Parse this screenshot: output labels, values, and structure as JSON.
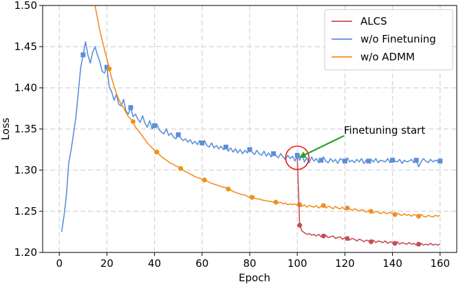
{
  "chart_data": {
    "type": "line",
    "xlabel": "Epoch",
    "ylabel": "Loss",
    "xlim": [
      -7,
      167
    ],
    "ylim": [
      1.2,
      1.5
    ],
    "xticks": [
      0,
      20,
      40,
      60,
      80,
      100,
      120,
      140,
      160
    ],
    "yticks": [
      1.2,
      1.25,
      1.3,
      1.35,
      1.4,
      1.45,
      1.5
    ],
    "xtick_labels": [
      "0",
      "20",
      "40",
      "60",
      "80",
      "100",
      "120",
      "140",
      "160"
    ],
    "ytick_labels": [
      "1.20",
      "1.25",
      "1.30",
      "1.35",
      "1.40",
      "1.45",
      "1.50"
    ],
    "grid": true,
    "legend_position": "top-right",
    "series": [
      {
        "name": "ALCS",
        "color": "#c44e52",
        "marker": "circle",
        "x": [
          100,
          101,
          102,
          103,
          104,
          105,
          106,
          107,
          108,
          109,
          110,
          111,
          112,
          113,
          114,
          115,
          116,
          117,
          118,
          119,
          120,
          121,
          122,
          123,
          124,
          125,
          126,
          127,
          128,
          129,
          130,
          131,
          132,
          133,
          134,
          135,
          136,
          137,
          138,
          139,
          140,
          141,
          142,
          143,
          144,
          145,
          146,
          147,
          148,
          149,
          150,
          151,
          152,
          153,
          154,
          155,
          156,
          157,
          158,
          159,
          160
        ],
        "y": [
          1.315,
          1.233,
          1.226,
          1.224,
          1.222,
          1.223,
          1.221,
          1.222,
          1.22,
          1.222,
          1.219,
          1.22,
          1.221,
          1.218,
          1.219,
          1.22,
          1.217,
          1.218,
          1.219,
          1.216,
          1.218,
          1.217,
          1.215,
          1.217,
          1.216,
          1.214,
          1.216,
          1.215,
          1.213,
          1.215,
          1.214,
          1.213,
          1.215,
          1.212,
          1.214,
          1.213,
          1.212,
          1.214,
          1.211,
          1.213,
          1.212,
          1.211,
          1.213,
          1.21,
          1.212,
          1.211,
          1.21,
          1.212,
          1.21,
          1.211,
          1.209,
          1.21,
          1.211,
          1.209,
          1.21,
          1.209,
          1.211,
          1.209,
          1.21,
          1.209,
          1.21
        ]
      },
      {
        "name": "w/o Finetuning",
        "color": "#5a8fd8",
        "marker": "square",
        "x": [
          1,
          2,
          3,
          4,
          5,
          6,
          7,
          8,
          9,
          10,
          11,
          12,
          13,
          14,
          15,
          16,
          17,
          18,
          19,
          20,
          21,
          22,
          23,
          24,
          25,
          26,
          27,
          28,
          29,
          30,
          31,
          32,
          33,
          34,
          35,
          36,
          37,
          38,
          39,
          40,
          41,
          42,
          43,
          44,
          45,
          46,
          47,
          48,
          49,
          50,
          51,
          52,
          53,
          54,
          55,
          56,
          57,
          58,
          59,
          60,
          61,
          62,
          63,
          64,
          65,
          66,
          67,
          68,
          69,
          70,
          71,
          72,
          73,
          74,
          75,
          76,
          77,
          78,
          79,
          80,
          81,
          82,
          83,
          84,
          85,
          86,
          87,
          88,
          89,
          90,
          91,
          92,
          93,
          94,
          95,
          96,
          97,
          98,
          99,
          100,
          101,
          102,
          103,
          104,
          105,
          106,
          107,
          108,
          109,
          110,
          111,
          112,
          113,
          114,
          115,
          116,
          117,
          118,
          119,
          120,
          121,
          122,
          123,
          124,
          125,
          126,
          127,
          128,
          129,
          130,
          131,
          132,
          133,
          134,
          135,
          136,
          137,
          138,
          139,
          140,
          141,
          142,
          143,
          144,
          145,
          146,
          147,
          148,
          149,
          150,
          151,
          152,
          153,
          154,
          155,
          156,
          157,
          158,
          159,
          160
        ],
        "y": [
          1.225,
          1.245,
          1.27,
          1.31,
          1.325,
          1.345,
          1.365,
          1.395,
          1.425,
          1.44,
          1.456,
          1.44,
          1.43,
          1.443,
          1.45,
          1.44,
          1.432,
          1.42,
          1.418,
          1.425,
          1.401,
          1.395,
          1.385,
          1.392,
          1.38,
          1.378,
          1.386,
          1.372,
          1.368,
          1.376,
          1.365,
          1.368,
          1.362,
          1.358,
          1.366,
          1.357,
          1.352,
          1.36,
          1.35,
          1.354,
          1.356,
          1.349,
          1.346,
          1.344,
          1.35,
          1.342,
          1.345,
          1.34,
          1.338,
          1.343,
          1.339,
          1.336,
          1.338,
          1.334,
          1.337,
          1.332,
          1.335,
          1.331,
          1.336,
          1.333,
          1.336,
          1.33,
          1.328,
          1.333,
          1.327,
          1.33,
          1.326,
          1.329,
          1.325,
          1.328,
          1.323,
          1.327,
          1.322,
          1.326,
          1.321,
          1.325,
          1.32,
          1.324,
          1.321,
          1.325,
          1.322,
          1.319,
          1.324,
          1.32,
          1.318,
          1.323,
          1.317,
          1.321,
          1.316,
          1.32,
          1.318,
          1.315,
          1.32,
          1.316,
          1.313,
          1.318,
          1.314,
          1.317,
          1.311,
          1.318,
          1.312,
          1.318,
          1.31,
          1.315,
          1.309,
          1.316,
          1.311,
          1.314,
          1.309,
          1.312,
          1.316,
          1.311,
          1.309,
          1.314,
          1.31,
          1.313,
          1.308,
          1.314,
          1.312,
          1.311,
          1.315,
          1.31,
          1.312,
          1.309,
          1.313,
          1.31,
          1.314,
          1.308,
          1.312,
          1.311,
          1.313,
          1.31,
          1.314,
          1.309,
          1.312,
          1.311,
          1.31,
          1.314,
          1.309,
          1.312,
          1.311,
          1.31,
          1.313,
          1.308,
          1.312,
          1.31,
          1.311,
          1.313,
          1.309,
          1.312,
          1.304,
          1.31,
          1.314,
          1.311,
          1.309,
          1.313,
          1.31,
          1.312,
          1.311,
          1.311
        ]
      },
      {
        "name": "w/o ADMM",
        "color": "#f28e1c",
        "marker": "circle",
        "x": [
          15,
          16,
          17,
          18,
          19,
          20,
          21,
          22,
          23,
          24,
          25,
          26,
          27,
          28,
          29,
          30,
          31,
          32,
          33,
          34,
          35,
          36,
          37,
          38,
          39,
          40,
          41,
          42,
          43,
          44,
          45,
          46,
          47,
          48,
          49,
          50,
          51,
          52,
          53,
          54,
          55,
          56,
          57,
          58,
          59,
          60,
          61,
          62,
          63,
          64,
          65,
          66,
          67,
          68,
          69,
          70,
          71,
          72,
          73,
          74,
          75,
          76,
          77,
          78,
          79,
          80,
          81,
          82,
          83,
          84,
          85,
          86,
          87,
          88,
          89,
          90,
          91,
          92,
          93,
          94,
          95,
          96,
          97,
          98,
          99,
          100,
          101,
          102,
          103,
          104,
          105,
          106,
          107,
          108,
          109,
          110,
          111,
          112,
          113,
          114,
          115,
          116,
          117,
          118,
          119,
          120,
          121,
          122,
          123,
          124,
          125,
          126,
          127,
          128,
          129,
          130,
          131,
          132,
          133,
          134,
          135,
          136,
          137,
          138,
          139,
          140,
          141,
          142,
          143,
          144,
          145,
          146,
          147,
          148,
          149,
          150,
          151,
          152,
          153,
          154,
          155,
          156,
          157,
          158,
          159,
          160
        ],
        "y": [
          1.5,
          1.485,
          1.47,
          1.458,
          1.446,
          1.435,
          1.423,
          1.412,
          1.402,
          1.393,
          1.386,
          1.38,
          1.376,
          1.37,
          1.365,
          1.362,
          1.359,
          1.352,
          1.349,
          1.345,
          1.341,
          1.337,
          1.333,
          1.33,
          1.327,
          1.324,
          1.322,
          1.319,
          1.316,
          1.314,
          1.312,
          1.31,
          1.308,
          1.307,
          1.305,
          1.304,
          1.302,
          1.3,
          1.298,
          1.297,
          1.295,
          1.294,
          1.292,
          1.291,
          1.29,
          1.289,
          1.288,
          1.287,
          1.285,
          1.284,
          1.283,
          1.282,
          1.281,
          1.28,
          1.279,
          1.279,
          1.277,
          1.276,
          1.274,
          1.273,
          1.272,
          1.271,
          1.27,
          1.27,
          1.268,
          1.267,
          1.267,
          1.266,
          1.265,
          1.265,
          1.264,
          1.263,
          1.263,
          1.262,
          1.262,
          1.261,
          1.261,
          1.26,
          1.261,
          1.259,
          1.26,
          1.258,
          1.259,
          1.258,
          1.259,
          1.257,
          1.258,
          1.256,
          1.258,
          1.255,
          1.257,
          1.256,
          1.255,
          1.257,
          1.254,
          1.256,
          1.257,
          1.254,
          1.256,
          1.255,
          1.253,
          1.256,
          1.254,
          1.253,
          1.255,
          1.252,
          1.254,
          1.253,
          1.251,
          1.253,
          1.252,
          1.25,
          1.252,
          1.251,
          1.249,
          1.251,
          1.25,
          1.248,
          1.25,
          1.249,
          1.247,
          1.249,
          1.248,
          1.247,
          1.249,
          1.247,
          1.246,
          1.248,
          1.246,
          1.245,
          1.247,
          1.245,
          1.246,
          1.244,
          1.246,
          1.245,
          1.244,
          1.246,
          1.244,
          1.243,
          1.245,
          1.244,
          1.243,
          1.245,
          1.244,
          1.245
        ]
      }
    ],
    "annotation": {
      "text": "Finetuning start",
      "color": "#2ca02c",
      "circle_color": "#e8141a",
      "point": [
        100,
        1.315
      ],
      "text_anchor": [
        123,
        1.328
      ]
    }
  }
}
